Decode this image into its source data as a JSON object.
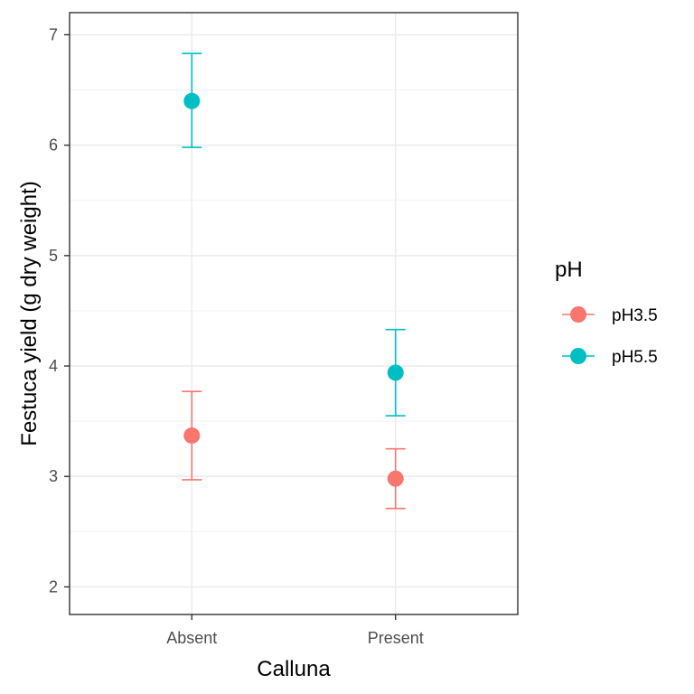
{
  "chart_data": {
    "type": "scatter",
    "subtype": "point-with-error-bars",
    "xlabel": "Calluna",
    "ylabel": "Festuca yield (g dry weight)",
    "categories": [
      "Absent",
      "Present"
    ],
    "ylim": [
      1.75,
      7.2
    ],
    "yticks": [
      2,
      3,
      4,
      5,
      6,
      7
    ],
    "grid": true,
    "legend": {
      "title": "pH",
      "position": "right"
    },
    "series": [
      {
        "name": "pH3.5",
        "color": "#F8766D",
        "values": [
          3.37,
          2.98
        ],
        "lower": [
          2.97,
          2.71
        ],
        "upper": [
          3.77,
          3.25
        ]
      },
      {
        "name": "pH5.5",
        "color": "#00BFC4",
        "values": [
          6.4,
          3.94
        ],
        "lower": [
          5.98,
          3.55
        ],
        "upper": [
          6.83,
          4.33
        ]
      }
    ]
  }
}
